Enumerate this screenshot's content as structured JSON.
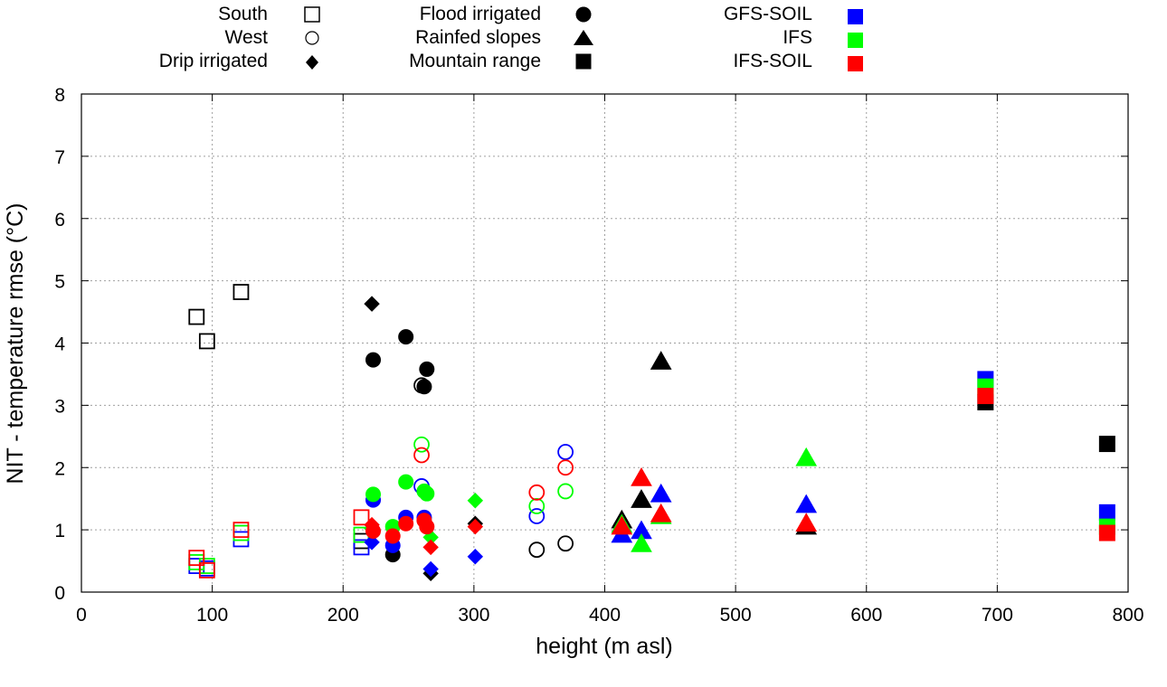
{
  "chart_data": {
    "type": "scatter",
    "title": "",
    "xlabel": "height (m asl)",
    "ylabel": "NIT - temperature rmse (°C)",
    "xlim": [
      0,
      800
    ],
    "ylim": [
      0,
      8
    ],
    "xticks": [
      "0",
      "100",
      "200",
      "300",
      "400",
      "500",
      "600",
      "700",
      "800"
    ],
    "yticks": [
      "0",
      "1",
      "2",
      "3",
      "4",
      "5",
      "6",
      "7",
      "8"
    ],
    "grid": true,
    "legend_position": "top",
    "legend": {
      "groups": [
        {
          "name": "South",
          "marker": "open-square"
        },
        {
          "name": "West",
          "marker": "open-circle"
        },
        {
          "name": "Drip irrigated",
          "marker": "filled-diamond"
        },
        {
          "name": "Flood irrigated",
          "marker": "filled-circle"
        },
        {
          "name": "Rainfed slopes",
          "marker": "filled-triangle"
        },
        {
          "name": "Mountain range",
          "marker": "filled-square"
        }
      ],
      "models": [
        {
          "name": "GFS-SOIL",
          "color": "#0000ff"
        },
        {
          "name": "IFS",
          "color": "#00ff00"
        },
        {
          "name": "IFS-SOIL",
          "color": "#ff0000"
        }
      ]
    },
    "colors": {
      "NIT": "#000000",
      "GFS-SOIL": "#0000ff",
      "IFS": "#00ff00",
      "IFS-SOIL": "#ff0000"
    },
    "series": [
      {
        "group": "South",
        "marker": "open-square",
        "model": "NIT",
        "points": [
          [
            88,
            4.42
          ],
          [
            96,
            4.03
          ],
          [
            122,
            4.82
          ],
          [
            214,
            0.82
          ]
        ]
      },
      {
        "group": "South",
        "marker": "open-square",
        "model": "GFS-SOIL",
        "points": [
          [
            88,
            0.42
          ],
          [
            96,
            0.38
          ],
          [
            122,
            0.85
          ],
          [
            214,
            0.72
          ]
        ]
      },
      {
        "group": "South",
        "marker": "open-square",
        "model": "IFS",
        "points": [
          [
            88,
            0.48
          ],
          [
            96,
            0.42
          ],
          [
            122,
            0.95
          ],
          [
            214,
            0.92
          ]
        ]
      },
      {
        "group": "South",
        "marker": "open-square",
        "model": "IFS-SOIL",
        "points": [
          [
            88,
            0.55
          ],
          [
            96,
            0.35
          ],
          [
            122,
            1.0
          ],
          [
            214,
            1.2
          ]
        ]
      },
      {
        "group": "West",
        "marker": "open-circle",
        "model": "NIT",
        "points": [
          [
            260,
            3.32
          ],
          [
            348,
            0.68
          ],
          [
            370,
            0.78
          ]
        ]
      },
      {
        "group": "West",
        "marker": "open-circle",
        "model": "GFS-SOIL",
        "points": [
          [
            260,
            1.7
          ],
          [
            348,
            1.22
          ],
          [
            370,
            2.25
          ]
        ]
      },
      {
        "group": "West",
        "marker": "open-circle",
        "model": "IFS",
        "points": [
          [
            260,
            2.37
          ],
          [
            348,
            1.38
          ],
          [
            370,
            1.62
          ]
        ]
      },
      {
        "group": "West",
        "marker": "open-circle",
        "model": "IFS-SOIL",
        "points": [
          [
            260,
            2.2
          ],
          [
            348,
            1.6
          ],
          [
            370,
            2.0
          ]
        ]
      },
      {
        "group": "Drip irrigated",
        "marker": "filled-diamond",
        "model": "NIT",
        "points": [
          [
            222,
            4.63
          ],
          [
            267,
            0.3
          ],
          [
            301,
            1.1
          ]
        ]
      },
      {
        "group": "Drip irrigated",
        "marker": "filled-diamond",
        "model": "GFS-SOIL",
        "points": [
          [
            222,
            0.8
          ],
          [
            267,
            0.37
          ],
          [
            301,
            0.57
          ]
        ]
      },
      {
        "group": "Drip irrigated",
        "marker": "filled-diamond",
        "model": "IFS",
        "points": [
          [
            222,
            1.02
          ],
          [
            267,
            0.88
          ],
          [
            301,
            1.47
          ]
        ]
      },
      {
        "group": "Drip irrigated",
        "marker": "filled-diamond",
        "model": "IFS-SOIL",
        "points": [
          [
            222,
            1.08
          ],
          [
            267,
            0.72
          ],
          [
            301,
            1.05
          ]
        ]
      },
      {
        "group": "Flood irrigated",
        "marker": "filled-circle",
        "model": "NIT",
        "points": [
          [
            223,
            3.73
          ],
          [
            248,
            4.1
          ],
          [
            264,
            3.58
          ],
          [
            262,
            3.3
          ],
          [
            238,
            0.6
          ]
        ]
      },
      {
        "group": "Flood irrigated",
        "marker": "filled-circle",
        "model": "GFS-SOIL",
        "points": [
          [
            223,
            1.48
          ],
          [
            248,
            1.2
          ],
          [
            262,
            1.2
          ],
          [
            238,
            0.75
          ]
        ]
      },
      {
        "group": "Flood irrigated",
        "marker": "filled-circle",
        "model": "IFS",
        "points": [
          [
            223,
            1.57
          ],
          [
            248,
            1.77
          ],
          [
            262,
            1.62
          ],
          [
            264,
            1.58
          ],
          [
            238,
            1.05
          ]
        ]
      },
      {
        "group": "Flood irrigated",
        "marker": "filled-circle",
        "model": "IFS-SOIL",
        "points": [
          [
            223,
            0.98
          ],
          [
            248,
            1.1
          ],
          [
            262,
            1.15
          ],
          [
            264,
            1.05
          ],
          [
            238,
            0.9
          ]
        ]
      },
      {
        "group": "Rainfed slopes",
        "marker": "filled-triangle",
        "model": "NIT",
        "points": [
          [
            413,
            1.15
          ],
          [
            428,
            1.48
          ],
          [
            443,
            3.7
          ],
          [
            554,
            1.05
          ]
        ]
      },
      {
        "group": "Rainfed slopes",
        "marker": "filled-triangle",
        "model": "GFS-SOIL",
        "points": [
          [
            413,
            0.92
          ],
          [
            428,
            0.98
          ],
          [
            443,
            1.57
          ],
          [
            554,
            1.4
          ]
        ]
      },
      {
        "group": "Rainfed slopes",
        "marker": "filled-triangle",
        "model": "IFS",
        "points": [
          [
            413,
            1.08
          ],
          [
            428,
            0.77
          ],
          [
            443,
            1.22
          ],
          [
            554,
            2.15
          ]
        ]
      },
      {
        "group": "Rainfed slopes",
        "marker": "filled-triangle",
        "model": "IFS-SOIL",
        "points": [
          [
            413,
            1.05
          ],
          [
            428,
            1.83
          ],
          [
            443,
            1.25
          ],
          [
            554,
            1.1
          ]
        ]
      },
      {
        "group": "Mountain range",
        "marker": "filled-square",
        "model": "NIT",
        "points": [
          [
            691,
            3.05
          ],
          [
            784,
            2.38
          ]
        ]
      },
      {
        "group": "Mountain range",
        "marker": "filled-square",
        "model": "GFS-SOIL",
        "points": [
          [
            691,
            3.42
          ],
          [
            784,
            1.28
          ]
        ]
      },
      {
        "group": "Mountain range",
        "marker": "filled-square",
        "model": "IFS",
        "points": [
          [
            691,
            3.3
          ],
          [
            784,
            1.05
          ]
        ]
      },
      {
        "group": "Mountain range",
        "marker": "filled-square",
        "model": "IFS-SOIL",
        "points": [
          [
            691,
            3.15
          ],
          [
            784,
            0.95
          ]
        ]
      }
    ]
  }
}
